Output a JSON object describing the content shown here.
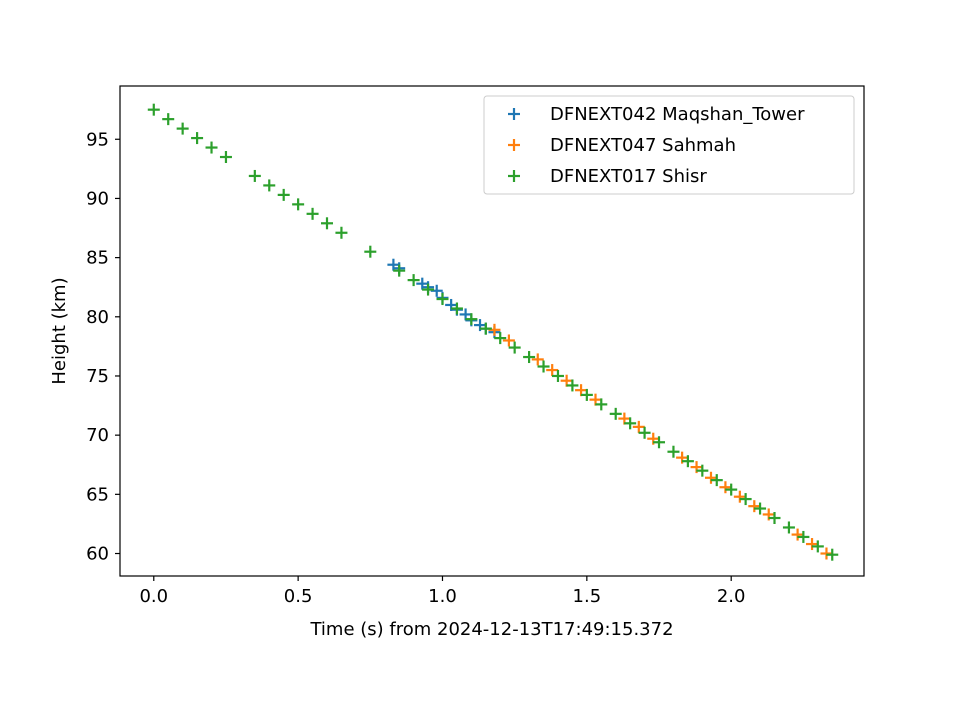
{
  "chart_data": {
    "type": "scatter",
    "xlabel": "Time (s) from 2024-12-13T17:49:15.372",
    "ylabel": "Height (km)",
    "xlim": [
      -0.117,
      2.46
    ],
    "ylim": [
      58.1,
      99.5
    ],
    "xticks": [
      0.0,
      0.5,
      1.0,
      1.5,
      2.0
    ],
    "xtick_labels": [
      "0.0",
      "0.5",
      "1.0",
      "1.5",
      "2.0"
    ],
    "yticks": [
      60,
      65,
      70,
      75,
      80,
      85,
      90,
      95
    ],
    "ytick_labels": [
      "60",
      "65",
      "70",
      "75",
      "80",
      "85",
      "90",
      "95"
    ],
    "grid": false,
    "legend_position": "top-right",
    "marker": "+",
    "series": [
      {
        "name": "DFNEXT042 Maqshan_Tower",
        "color": "#1f77b4",
        "x": [
          0.83,
          0.85,
          0.93,
          0.95,
          0.98,
          1.0,
          1.03,
          1.05,
          1.08,
          1.1,
          1.13,
          1.15,
          1.18
        ],
        "y": [
          84.4,
          84.1,
          82.8,
          82.5,
          82.2,
          81.6,
          81.0,
          80.6,
          80.2,
          79.7,
          79.3,
          79.0,
          78.7
        ]
      },
      {
        "name": "DFNEXT047 Sahmah",
        "color": "#ff7f0e",
        "x": [
          1.18,
          1.23,
          1.33,
          1.38,
          1.43,
          1.48,
          1.53,
          1.63,
          1.68,
          1.73,
          1.83,
          1.88,
          1.93,
          1.98,
          2.03,
          2.08,
          2.13,
          2.23,
          2.28,
          2.33
        ],
        "y": [
          78.9,
          78.0,
          76.4,
          75.5,
          74.6,
          73.8,
          73.0,
          71.4,
          70.7,
          69.7,
          68.1,
          67.3,
          66.4,
          65.6,
          64.8,
          64.0,
          63.3,
          61.6,
          60.8,
          60.0
        ]
      },
      {
        "name": "DFNEXT017 Shisr",
        "color": "#2ca02c",
        "x": [
          0.0,
          0.05,
          0.1,
          0.15,
          0.2,
          0.25,
          0.35,
          0.4,
          0.45,
          0.5,
          0.55,
          0.6,
          0.65,
          0.75,
          0.85,
          0.9,
          0.95,
          1.0,
          1.05,
          1.1,
          1.15,
          1.2,
          1.25,
          1.3,
          1.35,
          1.4,
          1.45,
          1.5,
          1.55,
          1.6,
          1.65,
          1.7,
          1.75,
          1.8,
          1.85,
          1.9,
          1.95,
          2.0,
          2.05,
          2.1,
          2.15,
          2.2,
          2.25,
          2.3,
          2.35
        ],
        "y": [
          97.5,
          96.7,
          95.9,
          95.1,
          94.3,
          93.5,
          91.9,
          91.1,
          90.3,
          89.5,
          88.7,
          87.9,
          87.1,
          85.5,
          83.9,
          83.1,
          82.3,
          81.5,
          80.7,
          79.8,
          79.0,
          78.2,
          77.4,
          76.6,
          75.8,
          75.0,
          74.2,
          73.4,
          72.6,
          71.8,
          71.0,
          70.2,
          69.4,
          68.6,
          67.8,
          67.0,
          66.2,
          65.4,
          64.6,
          63.8,
          63.0,
          62.2,
          61.4,
          60.6,
          59.9
        ]
      }
    ]
  }
}
